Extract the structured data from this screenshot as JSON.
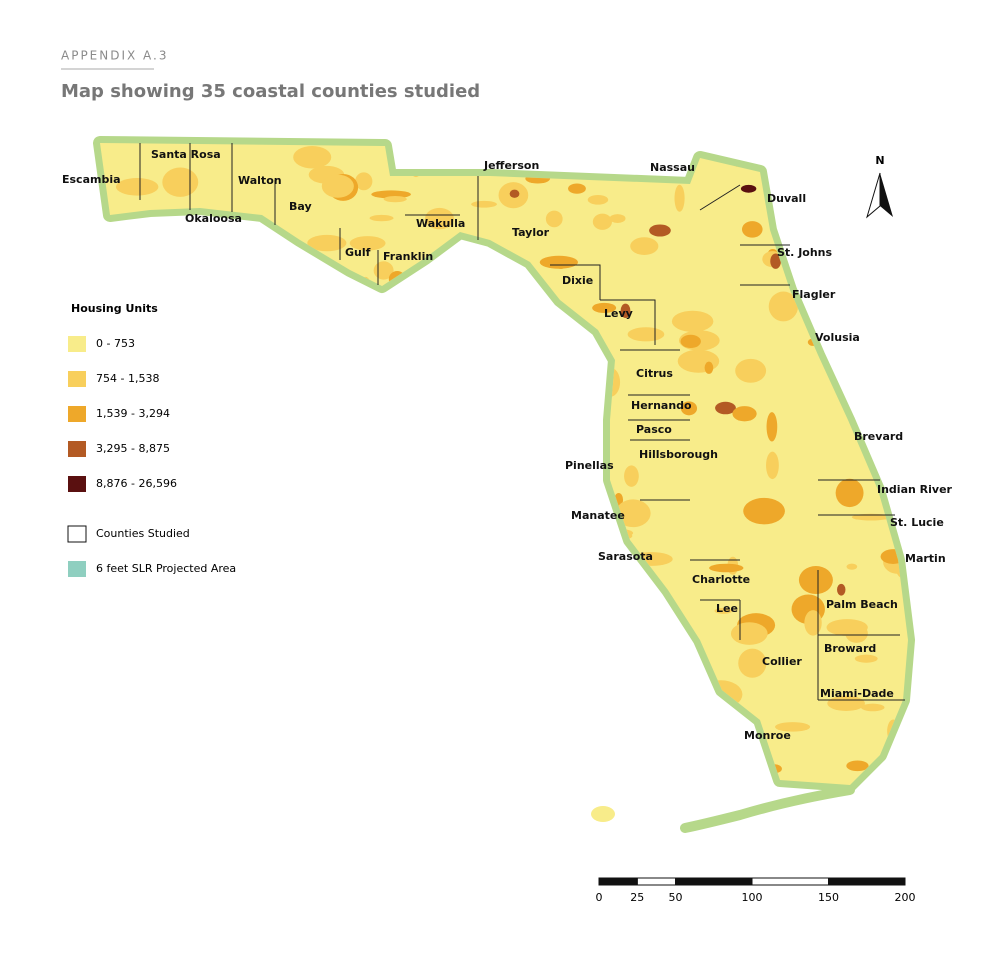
{
  "header": {
    "appendix": "APPENDIX A.3",
    "title": "Map showing 35 coastal counties studied"
  },
  "north_arrow": {
    "label": "N"
  },
  "counties": [
    "Escambia",
    "Santa Rosa",
    "Okaloosa",
    "Walton",
    "Bay",
    "Gulf",
    "Franklin",
    "Wakulla",
    "Jefferson",
    "Taylor",
    "Dixie",
    "Levy",
    "Citrus",
    "Hernando",
    "Pasco",
    "Pinellas",
    "Hillsborough",
    "Manatee",
    "Sarasota",
    "Charlotte",
    "Lee",
    "Collier",
    "Monroe",
    "Miami-Dade",
    "Broward",
    "Palm Beach",
    "Martin",
    "St. Lucie",
    "Indian River",
    "Brevard",
    "Volusia",
    "Flagler",
    "St. Johns",
    "Duvall",
    "Nassau"
  ],
  "legend": {
    "title": "Housing Units",
    "classes": [
      {
        "label": "0 - 753",
        "color": "#f8ec8a"
      },
      {
        "label": "754 - 1,538",
        "color": "#f8cf5c"
      },
      {
        "label": "1,539 - 3,294",
        "color": "#eea82a"
      },
      {
        "label": "3,295 - 8,875",
        "color": "#b35a24"
      },
      {
        "label": "8,876 - 26,596",
        "color": "#5a1010"
      }
    ],
    "outline": {
      "label": "Counties Studied"
    },
    "slr": {
      "label": "6 feet SLR Projected Area",
      "color": "#8fcfc0"
    }
  },
  "scale_bar": {
    "ticks": [
      0,
      25,
      50,
      100,
      150,
      200
    ]
  }
}
